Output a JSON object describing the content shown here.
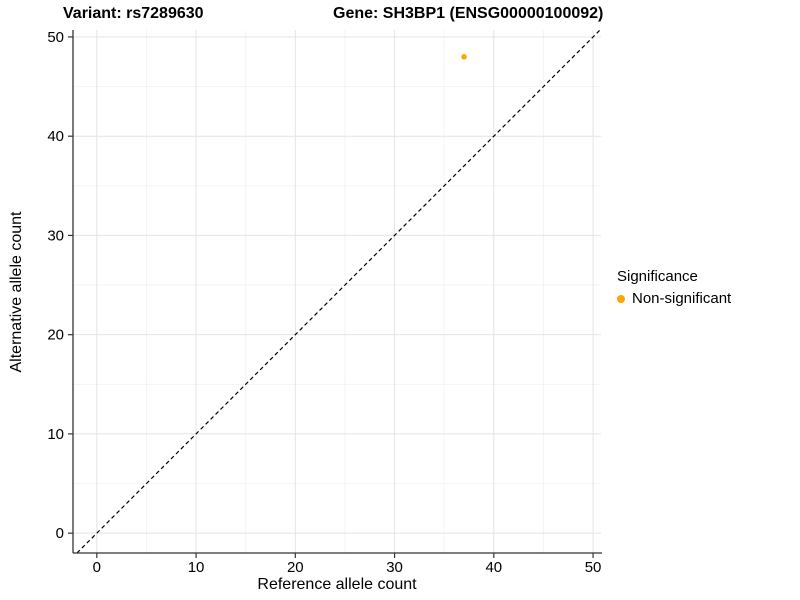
{
  "chart_data": {
    "type": "scatter",
    "titles": [
      "Variant: rs7289630",
      "Gene: SH3BP1 (ENSG00000100092)"
    ],
    "xlabel": "Reference allele count",
    "ylabel": "Alternative allele count",
    "xlim": [
      -2.4,
      50.8
    ],
    "ylim": [
      -2.0,
      50.7
    ],
    "xticks": [
      0,
      10,
      20,
      30,
      40,
      50
    ],
    "yticks": [
      0,
      10,
      20,
      30,
      40,
      50
    ],
    "xticks_minor": [
      5,
      15,
      25,
      35,
      45
    ],
    "yticks_minor": [
      5,
      15,
      25,
      35,
      45
    ],
    "grid": true,
    "series": [
      {
        "name": "Non-significant",
        "color": "#FFA500",
        "points": [
          {
            "x": 37,
            "y": 48
          }
        ]
      }
    ],
    "reference_line": {
      "slope": 1,
      "intercept": 0,
      "style": "dashed",
      "color": "#000000"
    },
    "legend": {
      "position": "right",
      "title": "Significance",
      "items": [
        {
          "label": "Non-significant",
          "color": "#FFA500",
          "marker": "circle"
        }
      ]
    },
    "colors": {
      "background": "#FFFFFF",
      "grid_major": "#E4E4E4",
      "grid_minor": "#F2F2F2",
      "axis_line": "#333333",
      "tick_text": "#000000",
      "title_text": "#000000"
    }
  }
}
